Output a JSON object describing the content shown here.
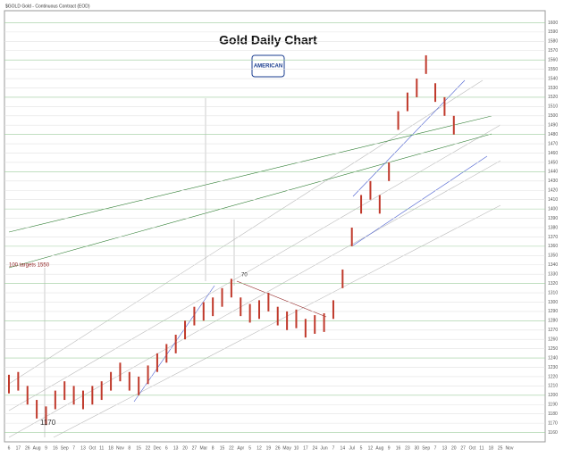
{
  "chart_data": {
    "type": "highlow",
    "header": "$GOLD Gold - Continuous Contract (EOD)",
    "title": "Gold Daily Chart",
    "logo": "AMERICAN",
    "categories": [
      "6",
      "17",
      "26",
      "Aug",
      "9",
      "16",
      "Sep",
      "7",
      "13",
      "Oct",
      "11",
      "18",
      "Nov",
      "8",
      "15",
      "22",
      "Dec",
      "6",
      "13",
      "20",
      "27",
      "Mar",
      "8",
      "15",
      "22",
      "Apr",
      "5",
      "12",
      "19",
      "26",
      "May",
      "10",
      "17",
      "24",
      "Jun",
      "7",
      "14",
      "Jul",
      "5",
      "12",
      "Aug",
      "9",
      "16",
      "23",
      "30",
      "Sep",
      "7",
      "13",
      "20",
      "27",
      "Oct",
      "11",
      "18",
      "25",
      "Nov"
    ],
    "high": [
      1222,
      1225,
      1210,
      1195,
      1188,
      1205,
      1215,
      1210,
      1205,
      1210,
      1215,
      1225,
      1235,
      1225,
      1220,
      1232,
      1245,
      1255,
      1265,
      1280,
      1295,
      1300,
      1305,
      1315,
      1325,
      1305,
      1298,
      1302,
      1310,
      1295,
      1290,
      1292,
      1282,
      1286,
      1288,
      1302,
      1335,
      1380,
      1415,
      1430,
      1415,
      1450,
      1505,
      1525,
      1540,
      1565,
      1535,
      1520,
      1500,
      null,
      null,
      null,
      null,
      null,
      null
    ],
    "low": [
      1202,
      1205,
      1190,
      1175,
      1168,
      1185,
      1195,
      1190,
      1185,
      1190,
      1195,
      1205,
      1215,
      1205,
      1200,
      1212,
      1225,
      1235,
      1245,
      1260,
      1275,
      1280,
      1285,
      1295,
      1305,
      1285,
      1278,
      1282,
      1290,
      1275,
      1270,
      1272,
      1262,
      1266,
      1268,
      1282,
      1315,
      1360,
      1395,
      1410,
      1395,
      1430,
      1485,
      1505,
      1520,
      1545,
      1515,
      1500,
      1480,
      null,
      null,
      null,
      null,
      null,
      null
    ],
    "color": "#c0392b",
    "ylim": [
      1150,
      1610
    ],
    "yticks": [
      1160,
      1170,
      1180,
      1190,
      1200,
      1210,
      1220,
      1230,
      1240,
      1250,
      1260,
      1270,
      1280,
      1290,
      1300,
      1310,
      1320,
      1330,
      1340,
      1350,
      1360,
      1370,
      1380,
      1390,
      1400,
      1410,
      1420,
      1430,
      1440,
      1450,
      1460,
      1470,
      1480,
      1490,
      1500,
      1510,
      1520,
      1530,
      1540,
      1550,
      1560,
      1570,
      1580,
      1590,
      1600
    ],
    "grid": true,
    "annotations": [
      "1170",
      "100 targets 1550",
      "70"
    ]
  }
}
